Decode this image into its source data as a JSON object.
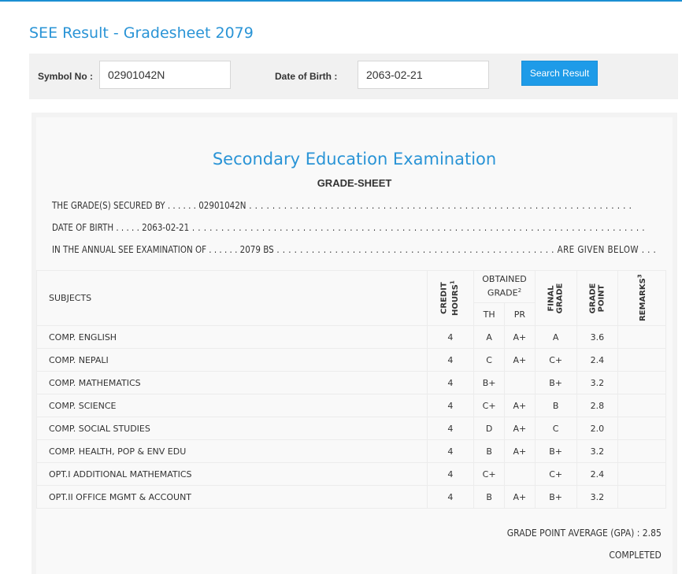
{
  "page_title": "SEE Result - Gradesheet 2079",
  "search": {
    "symbol_label": "Symbol No :",
    "symbol_value": "02901042N",
    "dob_label": "Date of Birth :",
    "dob_value": "2063-02-21",
    "button_label": "Search Result"
  },
  "sheet": {
    "exam_title": "Secondary Education Examination",
    "subtitle": "GRADE-SHEET",
    "line1_prefix": "THE GRADE(S) SECURED BY . . . . . . ",
    "line1_value": "02901042N",
    "line1_suffix": " . . . . . . . . . . . . . . . . . . . . . . . . . . . . . . . . . . . . . . . . . . . . . . . . . . . . . . . . . . . . . . . . . .",
    "line2_prefix": "DATE OF BIRTH . . . . . ",
    "line2_value": "2063-02-21",
    "line2_suffix": " . . . . . . . . . . . . . . . . . . . . . . . . . . . . . . . . . . . . . . . . . . . . . . . . . . . . . . . . . . . . . . . . . . . . . . . . . . . . . .",
    "line3_prefix": "IN THE ANNUAL SEE EXAMINATION OF . . . . . . ",
    "line3_value": "2079 BS",
    "line3_suffix": " . . . . . . . . . . . . . . . . . . . . . . . . . . . . . . . . . . . . . . . . . . . . . . . . ARE GIVEN BELOW . . .",
    "gpa_label": "GRADE POINT AVERAGE (GPA) : 2.85",
    "status": "COMPLETED"
  },
  "table": {
    "headers": {
      "subjects": "SUBJECTS",
      "credit": "CREDIT",
      "hours": "HOURS",
      "credit_sup": "1",
      "obtained_l1": "OBTAINED",
      "obtained_l2": "GRADE",
      "obtained_sup": "2",
      "th": "TH",
      "pr": "PR",
      "final": "FINAL",
      "grade": "GRADE",
      "grade2": "GRADE",
      "point": "POINT",
      "remarks": "REMARKS",
      "remarks_sup": "3"
    },
    "rows": [
      {
        "subject": "COMP. ENGLISH",
        "credit": "4",
        "th": "A",
        "pr": "A+",
        "final": "A",
        "point": "3.6",
        "remarks": ""
      },
      {
        "subject": "COMP. NEPALI",
        "credit": "4",
        "th": "C",
        "pr": "A+",
        "final": "C+",
        "point": "2.4",
        "remarks": ""
      },
      {
        "subject": "COMP. MATHEMATICS",
        "credit": "4",
        "th": "B+",
        "pr": "",
        "final": "B+",
        "point": "3.2",
        "remarks": ""
      },
      {
        "subject": "COMP. SCIENCE",
        "credit": "4",
        "th": "C+",
        "pr": "A+",
        "final": "B",
        "point": "2.8",
        "remarks": ""
      },
      {
        "subject": "COMP. SOCIAL STUDIES",
        "credit": "4",
        "th": "D",
        "pr": "A+",
        "final": "C",
        "point": "2.0",
        "remarks": ""
      },
      {
        "subject": "COMP. HEALTH, POP & ENV EDU",
        "credit": "4",
        "th": "B",
        "pr": "A+",
        "final": "B+",
        "point": "3.2",
        "remarks": ""
      },
      {
        "subject": "OPT.I ADDITIONAL MATHEMATICS",
        "credit": "4",
        "th": "C+",
        "pr": "",
        "final": "C+",
        "point": "2.4",
        "remarks": ""
      },
      {
        "subject": "OPT.II OFFICE MGMT & ACCOUNT",
        "credit": "4",
        "th": "B",
        "pr": "A+",
        "final": "B+",
        "point": "3.2",
        "remarks": ""
      }
    ]
  }
}
